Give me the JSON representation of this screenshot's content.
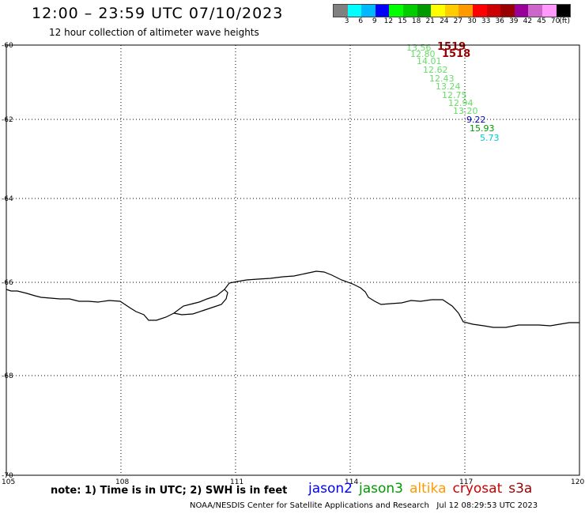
{
  "header": {
    "title": "12:00 – 23:59 UTC 07/10/2023",
    "subtitle": "12 hour collection of altimeter wave heights"
  },
  "colorbar": {
    "colors": [
      "#808080",
      "#00ffff",
      "#00b8ff",
      "#0000ff",
      "#00ff00",
      "#00cc00",
      "#009900",
      "#ffff00",
      "#ffcc00",
      "#ff9900",
      "#ff0000",
      "#cc0000",
      "#990000",
      "#990099",
      "#cc66cc",
      "#ff99ff",
      "#000000"
    ],
    "labels": [
      "3",
      "6",
      "9",
      "12",
      "15",
      "18",
      "21",
      "24",
      "27",
      "30",
      "33",
      "36",
      "39",
      "42",
      "45",
      "70",
      "(ft)"
    ]
  },
  "map": {
    "lon_range": [
      105,
      120
    ],
    "lat_range": [
      -60,
      -70
    ],
    "lon_ticks": [
      "105",
      "108",
      "111",
      "114",
      "117",
      "120"
    ],
    "lat_ticks": [
      "-60",
      "-62",
      "-64",
      "-66",
      "-68",
      "-70"
    ],
    "lat_tick_values": [
      -60,
      -62,
      -64,
      -66,
      -68,
      -70
    ],
    "lon_tick_values": [
      105,
      108,
      111,
      114,
      117,
      120
    ],
    "readings": [
      {
        "value": "13.56",
        "color": "#66dd66"
      },
      {
        "value": "1519",
        "color": "#990000"
      },
      {
        "value": "12.80",
        "color": "#66dd66"
      },
      {
        "value": "1518",
        "color": "#990000"
      },
      {
        "value": "14.01",
        "color": "#66dd66"
      },
      {
        "value": "12.62",
        "color": "#66dd66"
      },
      {
        "value": "12.43",
        "color": "#66dd66"
      },
      {
        "value": "13.24",
        "color": "#66dd66"
      },
      {
        "value": "12.75",
        "color": "#66dd66"
      },
      {
        "value": "12.94",
        "color": "#66dd66"
      },
      {
        "value": "13.20",
        "color": "#66dd66"
      },
      {
        "value": "9.22",
        "color": "#0000cc"
      },
      {
        "value": "15.93",
        "color": "#009900"
      },
      {
        "value": "5.73",
        "color": "#00cccc"
      }
    ]
  },
  "note": "note: 1) Time is in UTC; 2) SWH is in feet",
  "legend": [
    {
      "name": "jason2",
      "color": "#0000ff"
    },
    {
      "name": "jason3",
      "color": "#009900"
    },
    {
      "name": "altika",
      "color": "#ff9900"
    },
    {
      "name": "cryosat",
      "color": "#cc0000"
    },
    {
      "name": "s3a",
      "color": "#990000"
    }
  ],
  "footer": {
    "credit": "NOAA/NESDIS Center for Satellite Applications and Research",
    "timestamp": "Jul 12 08:29:53 UTC 2023"
  }
}
